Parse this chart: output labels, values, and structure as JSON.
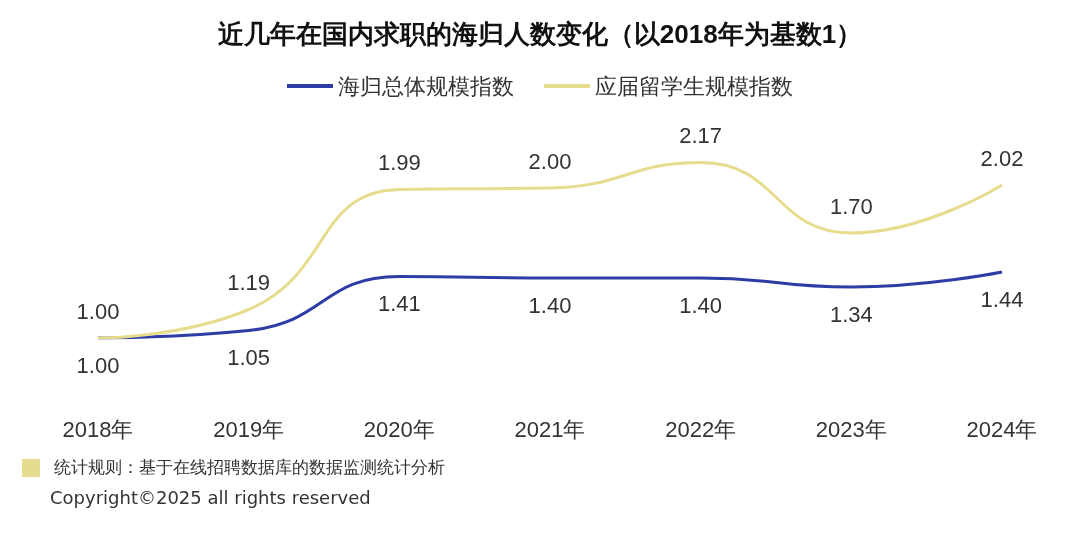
{
  "chart_data": {
    "type": "line",
    "title": "近几年在国内求职的海归人数变化（以2018年为基数1）",
    "categories": [
      "2018年",
      "2019年",
      "2020年",
      "2021年",
      "2022年",
      "2023年",
      "2024年"
    ],
    "series": [
      {
        "name": "海归总体规模指数",
        "color": "#2e3ca6",
        "values": [
          1.0,
          1.05,
          1.41,
          1.4,
          1.4,
          1.34,
          1.44
        ],
        "value_labels": [
          "1.00",
          "1.05",
          "1.41",
          "1.40",
          "1.40",
          "1.34",
          "1.44"
        ]
      },
      {
        "name": "应届留学生规模指数",
        "color": "#e6dc8e",
        "values": [
          1.0,
          1.19,
          1.99,
          2.0,
          2.17,
          1.7,
          2.02
        ],
        "value_labels": [
          "1.00",
          "1.19",
          "1.99",
          "2.00",
          "2.17",
          "1.70",
          "2.02"
        ]
      }
    ],
    "legend": "top",
    "marker": "none",
    "line_style": "solid",
    "grid": false,
    "annotations": [
      "统计规则：基于在线招聘数据库的数据监测统计分析",
      "Copyright©2025 all rights reserved"
    ]
  }
}
